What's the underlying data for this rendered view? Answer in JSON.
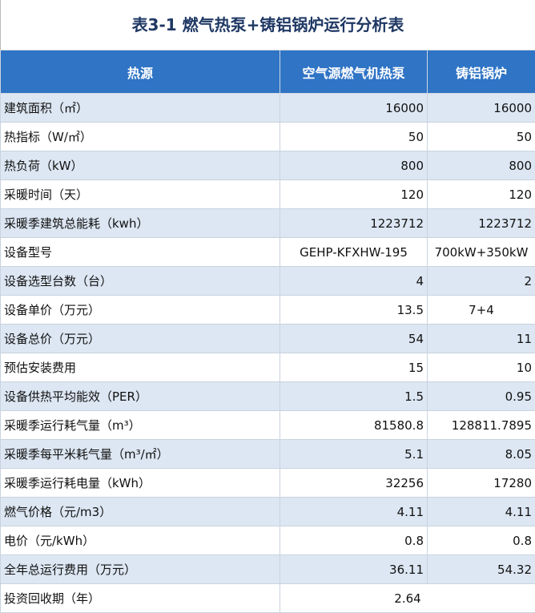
{
  "title": "表3-1 燃气热泵+铸铝锅炉运行分析表",
  "table": {
    "header": [
      "热源",
      "空气源燃气机热泵",
      "铸铝锅炉"
    ],
    "rows": [
      [
        "建筑面积（㎡）",
        "16000",
        "16000"
      ],
      [
        "热指标（W/㎡）",
        "50",
        "50"
      ],
      [
        "热负荷（kW）",
        "800",
        "800"
      ],
      [
        "采暖时间（天）",
        "120",
        "120"
      ],
      [
        "采暖季建筑总能耗（kwh）",
        "1223712",
        "1223712"
      ],
      [
        "设备型号",
        "GEHP-KFXHW-195",
        "700kW+350kW"
      ],
      [
        "设备选型台数（台）",
        "4",
        "2"
      ],
      [
        "设备单价（万元）",
        "13.5",
        "7+4"
      ],
      [
        "设备总价（万元）",
        "54",
        "11"
      ],
      [
        "预估安装费用",
        "15",
        "10"
      ],
      [
        "设备供热平均能效（PER）",
        "1.5",
        "0.95"
      ],
      [
        "采暖季运行耗气量（m³）",
        "81580.8",
        "128811.7895"
      ],
      [
        "采暖季每平米耗气量（m³/㎡）",
        "5.1",
        "8.05"
      ],
      [
        "采暖季运行耗电量（kWh）",
        "32256",
        "17280"
      ],
      [
        "燃气价格（元/m3）",
        "4.11",
        "4.11"
      ],
      [
        "电价（元/kWh）",
        "0.8",
        "0.8"
      ],
      [
        "全年总运行费用（万元）",
        "36.11",
        "54.32"
      ],
      [
        "投资回收期（年）",
        "2.64"
      ]
    ]
  }
}
